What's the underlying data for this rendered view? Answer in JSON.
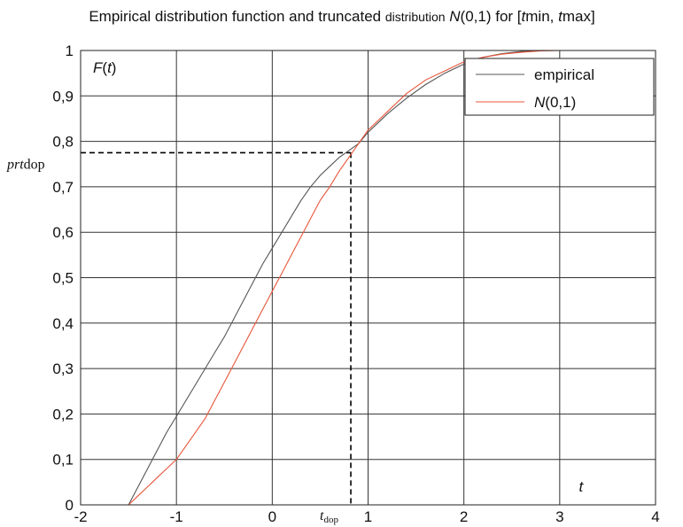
{
  "chart_data": {
    "type": "line",
    "title": "Empirical distribution function and truncated distribution N(0,1) for [tmin, tmax]",
    "title_parts": {
      "t1": "Empirical distribution function and truncated ",
      "t2": "distribution",
      "t3": " ",
      "t4": "N",
      "t5": "(0,1) for [",
      "t6": "t",
      "t7": "min, ",
      "t8": "t",
      "t9": "max]"
    },
    "ylabel_parts": {
      "f": "F",
      "open": "(",
      "t": "t",
      "close": ")"
    },
    "xlabel": "t",
    "xlim": [
      -2,
      4
    ],
    "ylim": [
      0,
      1
    ],
    "xticks": [
      -2,
      -1,
      0,
      1,
      2,
      3,
      4
    ],
    "xtick_labels": [
      "-2",
      "-1",
      "0",
      "1",
      "2",
      "3",
      "4"
    ],
    "yticks": [
      0,
      0.1,
      0.2,
      0.3,
      0.4,
      0.5,
      0.6,
      0.7,
      0.8,
      0.9,
      1
    ],
    "ytick_labels": [
      "0",
      "0,1",
      "0,2",
      "0,3",
      "0,4",
      "0,5",
      "0,6",
      "0,7",
      "0,8",
      "0,9",
      "1"
    ],
    "grid": true,
    "legend_position": "top-right",
    "colors": {
      "empirical": "#555555",
      "normal": "#e8553a",
      "guide": "#000000"
    },
    "series": [
      {
        "name": "empirical",
        "x": [
          -1.5,
          -1.4,
          -1.3,
          -1.2,
          -1.1,
          -1.0,
          -0.9,
          -0.8,
          -0.7,
          -0.6,
          -0.5,
          -0.4,
          -0.3,
          -0.2,
          -0.1,
          0.0,
          0.1,
          0.2,
          0.3,
          0.4,
          0.5,
          0.6,
          0.7,
          0.8,
          0.9,
          1.0,
          1.2,
          1.4,
          1.6,
          1.8,
          2.0,
          2.2,
          2.4,
          2.6,
          2.8
        ],
        "y": [
          0.0,
          0.04,
          0.08,
          0.12,
          0.16,
          0.195,
          0.23,
          0.265,
          0.3,
          0.335,
          0.37,
          0.41,
          0.45,
          0.49,
          0.53,
          0.565,
          0.6,
          0.635,
          0.67,
          0.7,
          0.725,
          0.745,
          0.765,
          0.78,
          0.795,
          0.82,
          0.86,
          0.895,
          0.925,
          0.95,
          0.97,
          0.985,
          0.993,
          0.998,
          1.0
        ]
      },
      {
        "name": "N(0,1)",
        "x": [
          -1.5,
          -1.4,
          -1.3,
          -1.2,
          -1.1,
          -1.0,
          -0.9,
          -0.8,
          -0.7,
          -0.6,
          -0.5,
          -0.4,
          -0.3,
          -0.2,
          -0.1,
          0.0,
          0.1,
          0.2,
          0.3,
          0.4,
          0.5,
          0.6,
          0.7,
          0.8,
          0.9,
          1.0,
          1.2,
          1.4,
          1.6,
          1.8,
          2.0,
          2.2,
          2.4,
          2.6,
          2.8,
          3.0,
          3.3
        ],
        "y": [
          0.0,
          0.02,
          0.04,
          0.06,
          0.08,
          0.1,
          0.13,
          0.16,
          0.19,
          0.23,
          0.27,
          0.31,
          0.35,
          0.39,
          0.43,
          0.47,
          0.51,
          0.55,
          0.59,
          0.63,
          0.67,
          0.7,
          0.735,
          0.765,
          0.795,
          0.825,
          0.865,
          0.905,
          0.935,
          0.955,
          0.975,
          0.985,
          0.992,
          0.996,
          0.999,
          1.0,
          1.0
        ]
      }
    ],
    "legend_labels": {
      "empirical": "empirical",
      "normal_n": "N",
      "normal_rest": "(0,1)"
    },
    "annotations": {
      "prt": "prt",
      "dop": "dop",
      "t": "t",
      "t_sub": "dop",
      "t_dop": 0.82,
      "prtdop": 0.775
    }
  }
}
